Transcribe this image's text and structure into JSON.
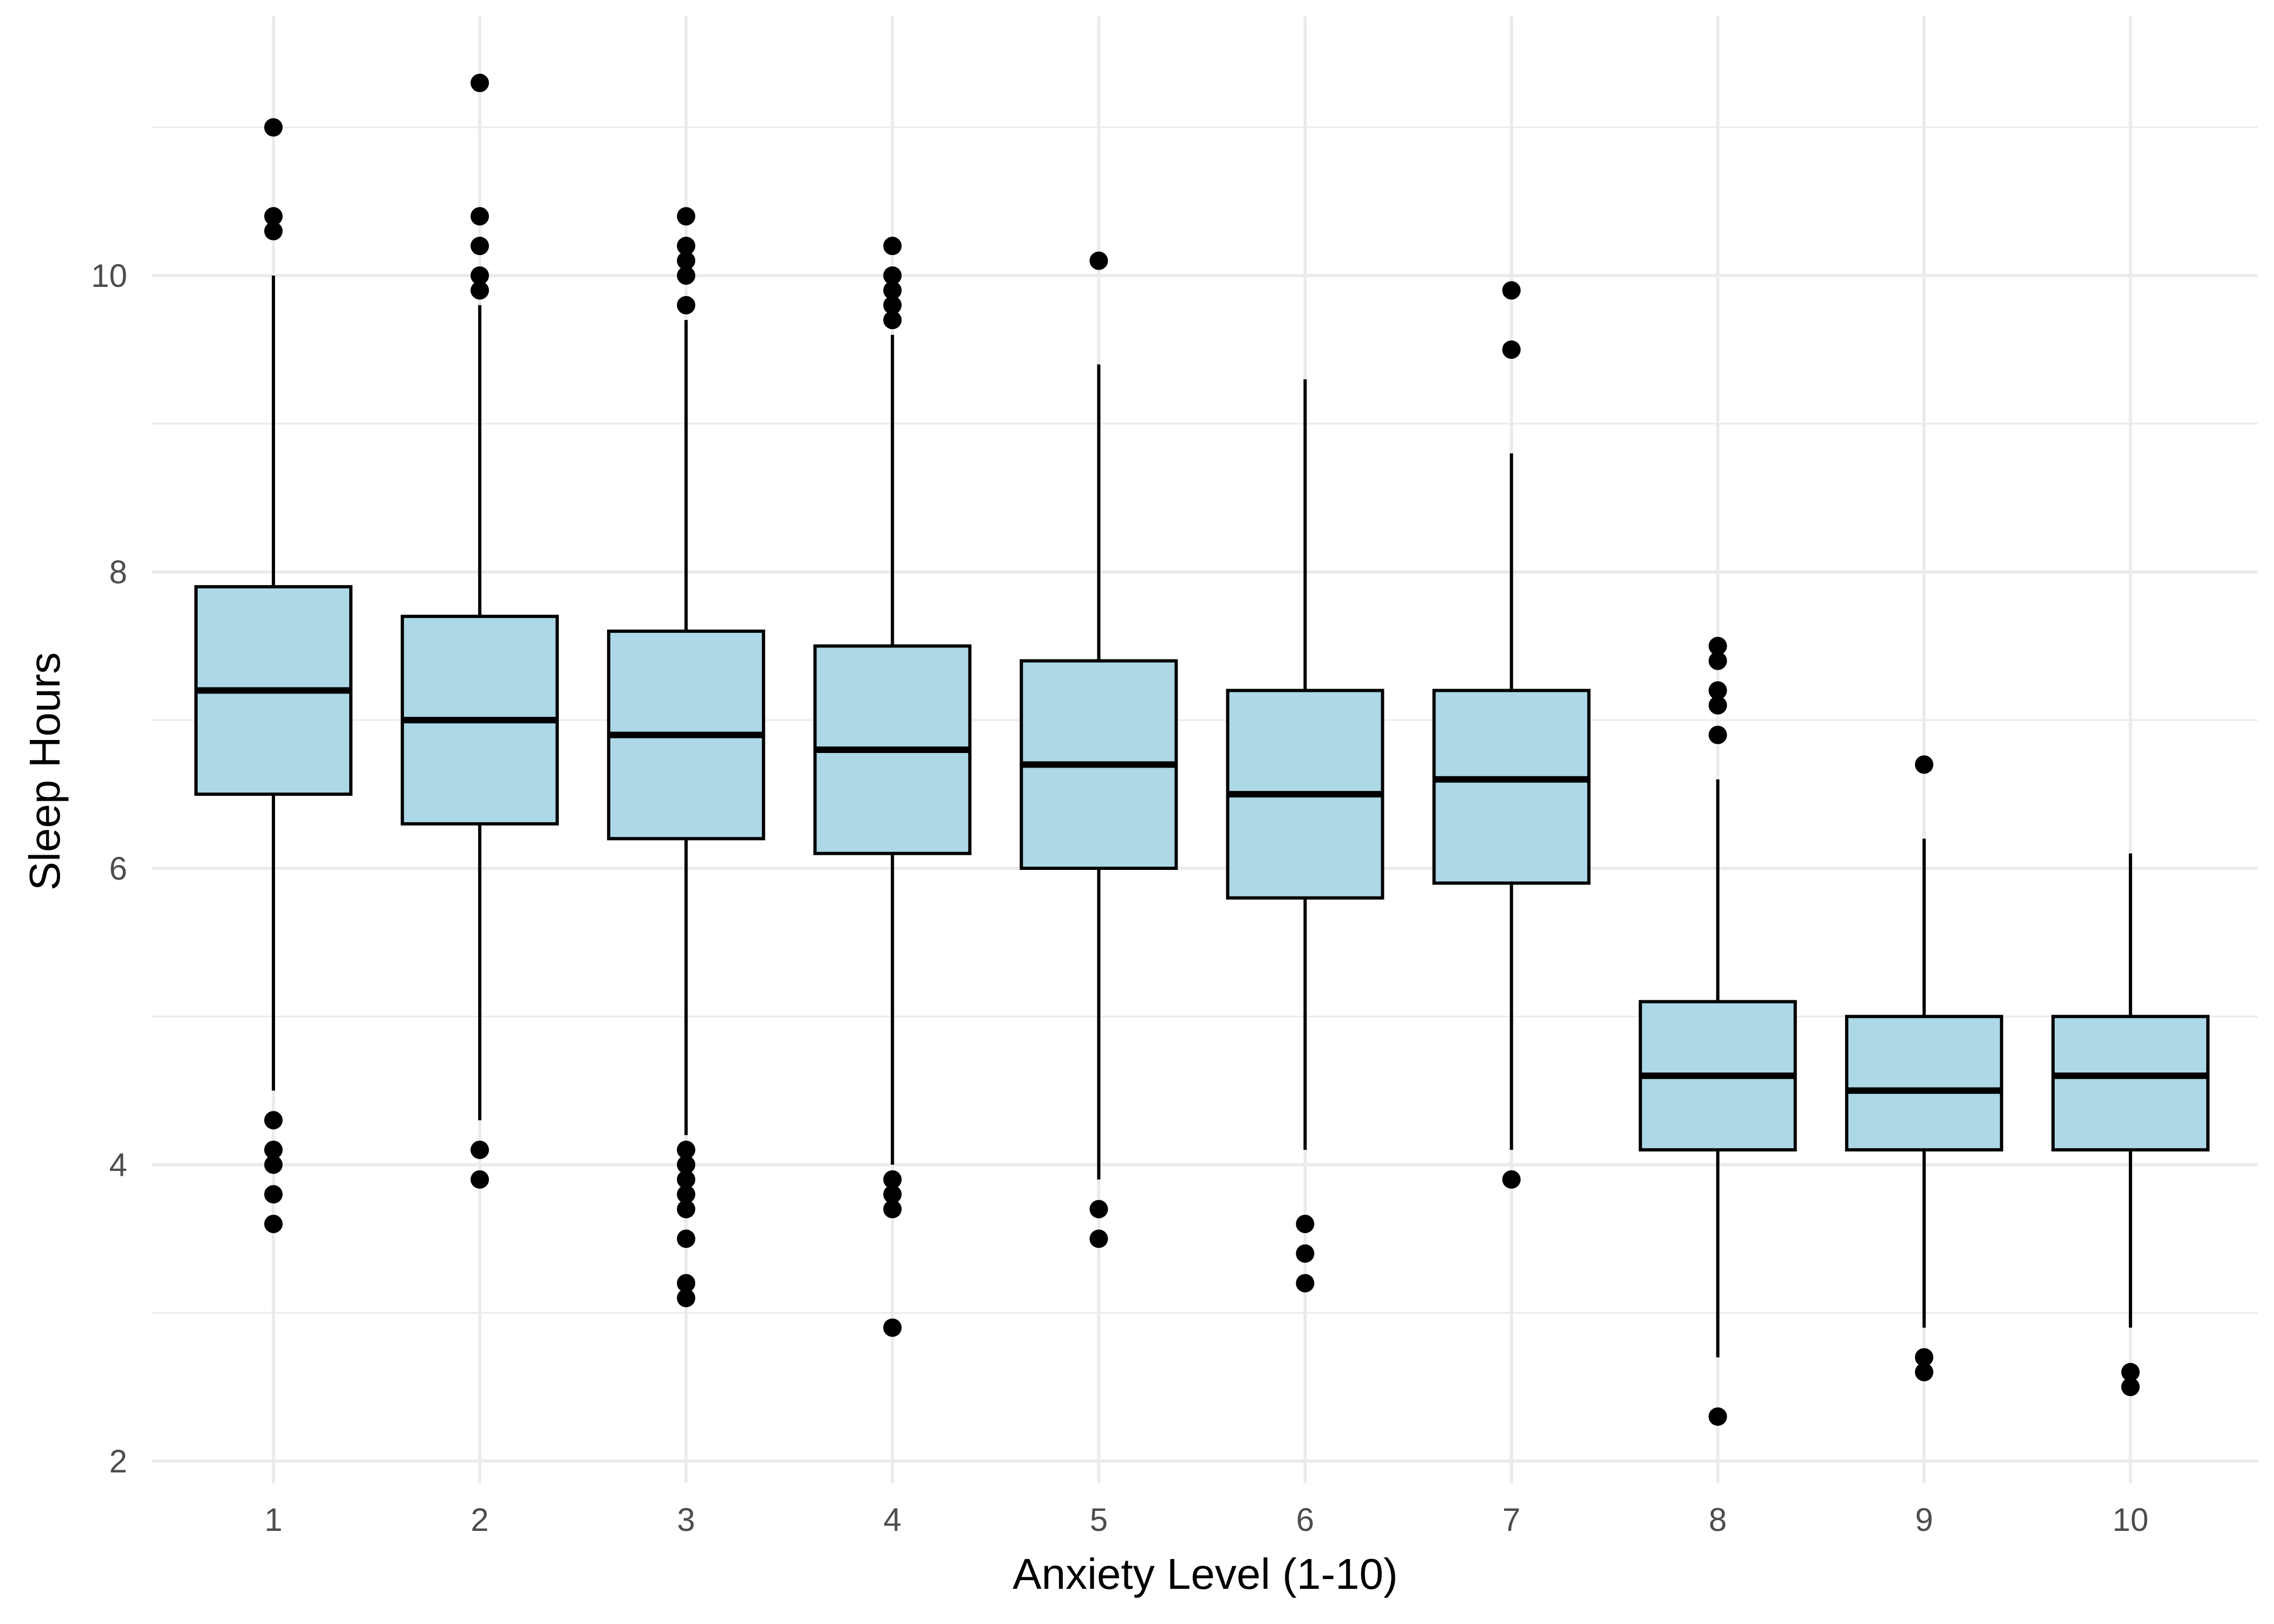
{
  "chart_data": {
    "type": "box",
    "xlabel": "Anxiety Level (1-10)",
    "ylabel": "Sleep Hours",
    "ylim": [
      1.85,
      11.75
    ],
    "y_ticks": [
      2,
      4,
      6,
      8,
      10
    ],
    "y_minor_ticks": [
      3,
      5,
      7,
      9,
      11
    ],
    "grid": true,
    "legend": "none",
    "colors": {
      "box_fill": "#add8e6",
      "outline": "#000000",
      "grid": "#ebebeb"
    },
    "categories": [
      "1",
      "2",
      "3",
      "4",
      "5",
      "6",
      "7",
      "8",
      "9",
      "10"
    ],
    "boxes": [
      {
        "category": "1",
        "whisker_low": 4.5,
        "q1": 6.5,
        "median": 7.2,
        "q3": 7.9,
        "whisker_high": 10.0,
        "outliers": [
          11.0,
          10.4,
          10.3,
          4.3,
          4.1,
          4.0,
          3.8,
          3.6
        ]
      },
      {
        "category": "2",
        "whisker_low": 4.3,
        "q1": 6.3,
        "median": 7.0,
        "q3": 7.7,
        "whisker_high": 9.8,
        "outliers": [
          11.3,
          10.4,
          10.2,
          10.0,
          9.9,
          4.1,
          3.9
        ]
      },
      {
        "category": "3",
        "whisker_low": 4.2,
        "q1": 6.2,
        "median": 6.9,
        "q3": 7.6,
        "whisker_high": 9.7,
        "outliers": [
          10.4,
          10.2,
          10.1,
          10.0,
          9.8,
          4.1,
          4.0,
          3.9,
          3.8,
          3.7,
          3.5,
          3.2,
          3.1
        ]
      },
      {
        "category": "4",
        "whisker_low": 4.0,
        "q1": 6.1,
        "median": 6.8,
        "q3": 7.5,
        "whisker_high": 9.6,
        "outliers": [
          10.2,
          10.0,
          9.9,
          9.8,
          9.7,
          3.9,
          3.8,
          3.7,
          2.9
        ]
      },
      {
        "category": "5",
        "whisker_low": 3.9,
        "q1": 6.0,
        "median": 6.7,
        "q3": 7.4,
        "whisker_high": 9.4,
        "outliers": [
          10.1,
          3.7,
          3.5
        ]
      },
      {
        "category": "6",
        "whisker_low": 4.1,
        "q1": 5.8,
        "median": 6.5,
        "q3": 7.2,
        "whisker_high": 9.3,
        "outliers": [
          3.6,
          3.4,
          3.2
        ]
      },
      {
        "category": "7",
        "whisker_low": 4.1,
        "q1": 5.9,
        "median": 6.6,
        "q3": 7.2,
        "whisker_high": 8.8,
        "outliers": [
          9.9,
          9.5,
          3.9
        ]
      },
      {
        "category": "8",
        "whisker_low": 2.7,
        "q1": 4.1,
        "median": 4.6,
        "q3": 5.1,
        "whisker_high": 6.6,
        "outliers": [
          7.5,
          7.4,
          7.2,
          7.1,
          6.9,
          2.3
        ]
      },
      {
        "category": "9",
        "whisker_low": 2.9,
        "q1": 4.1,
        "median": 4.5,
        "q3": 5.0,
        "whisker_high": 6.2,
        "outliers": [
          6.7,
          2.7,
          2.6
        ]
      },
      {
        "category": "10",
        "whisker_low": 2.9,
        "q1": 4.1,
        "median": 4.6,
        "q3": 5.0,
        "whisker_high": 6.1,
        "outliers": [
          2.6,
          2.5
        ]
      }
    ]
  }
}
